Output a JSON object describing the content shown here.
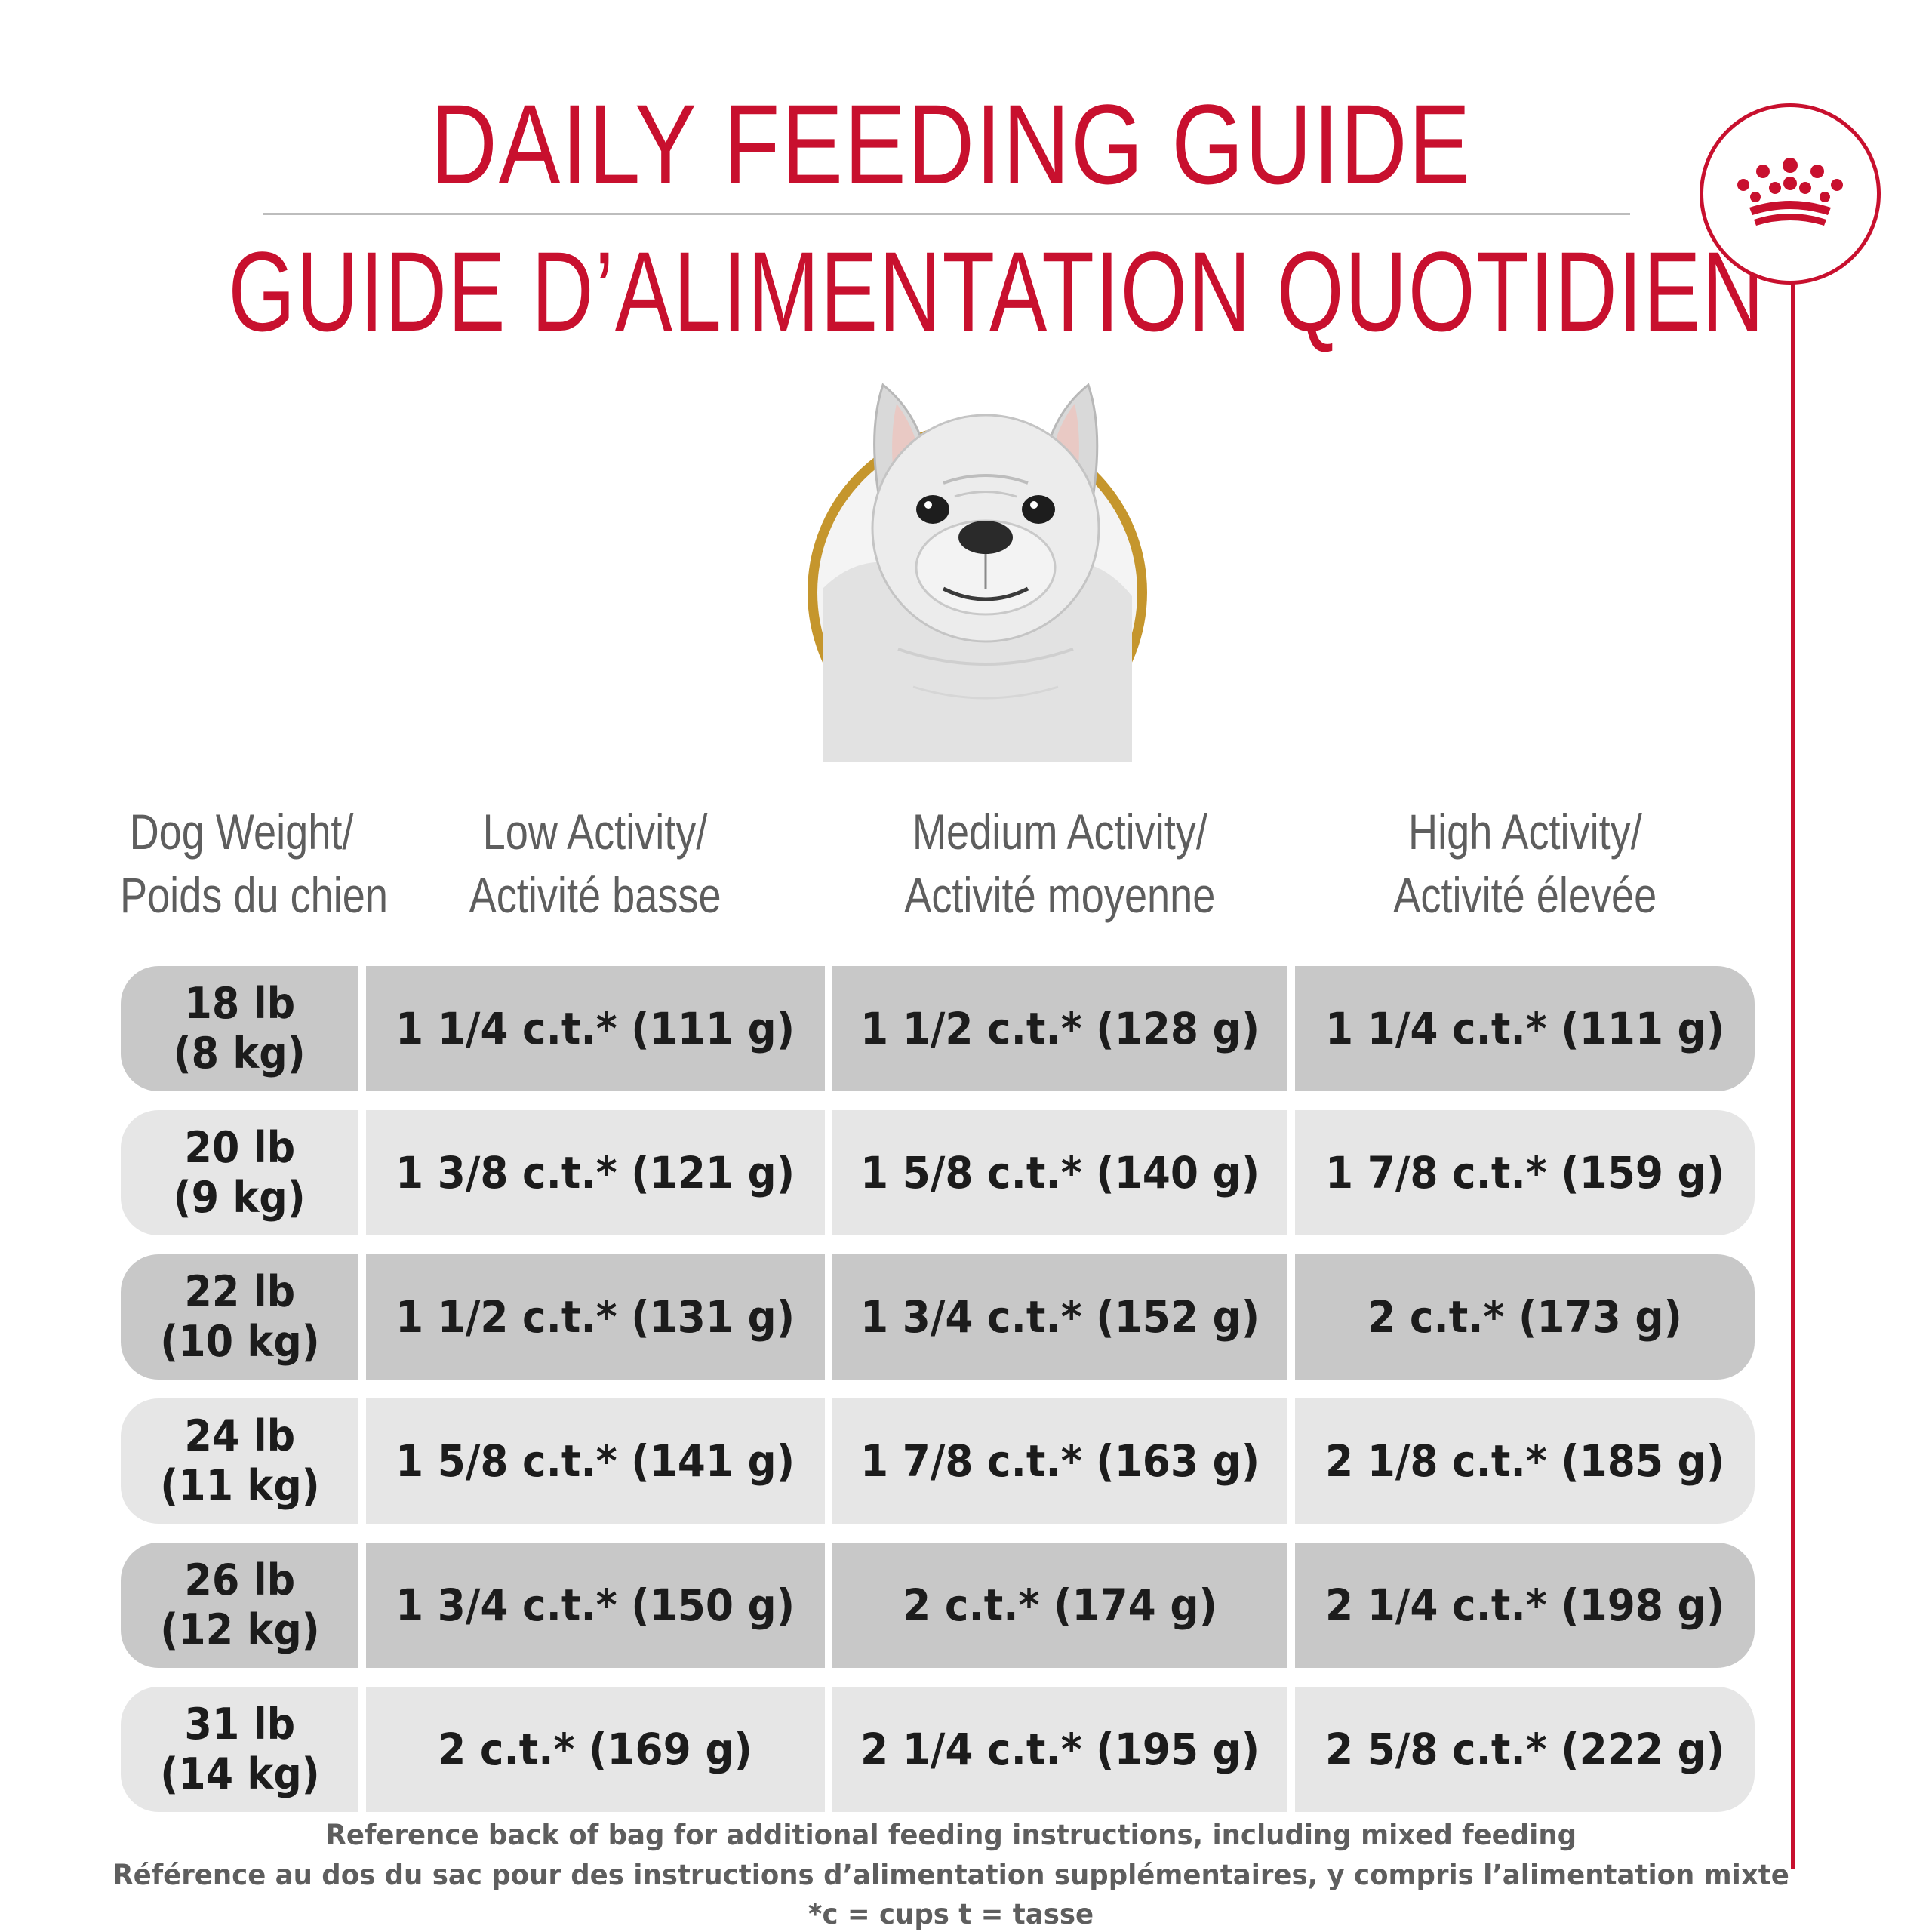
{
  "titles": {
    "english": "DAILY FEEDING GUIDE",
    "french": "GUIDE D’ALIMENTATION QUOTIDIEN"
  },
  "brand": {
    "icon": "crown-icon",
    "color": "#c8102e"
  },
  "image": {
    "subject": "dog-portrait-icon",
    "ring_color": "#c5962d"
  },
  "table": {
    "headers": [
      {
        "line1": "Dog Weight/",
        "line2": "Poids du chien"
      },
      {
        "line1": "Low Activity/",
        "line2": "Activité basse"
      },
      {
        "line1": "Medium Activity/",
        "line2": "Activité moyenne"
      },
      {
        "line1": "High Activity/",
        "line2": "Activité élevée"
      }
    ],
    "rows": [
      {
        "weight_lb": "18 lb",
        "weight_kg": "(8 kg)",
        "low": "1 1/4 c.t.* (111 g)",
        "medium": "1 1/2 c.t.* (128 g)",
        "high": "1 1/4 c.t.* (111 g)"
      },
      {
        "weight_lb": "20 lb",
        "weight_kg": "(9 kg)",
        "low": "1 3/8 c.t.* (121 g)",
        "medium": "1 5/8 c.t.* (140 g)",
        "high": "1 7/8 c.t.* (159 g)"
      },
      {
        "weight_lb": "22 lb",
        "weight_kg": "(10 kg)",
        "low": "1 1/2 c.t.* (131 g)",
        "medium": "1 3/4 c.t.* (152 g)",
        "high": "2 c.t.* (173 g)"
      },
      {
        "weight_lb": "24 lb",
        "weight_kg": "(11 kg)",
        "low": "1 5/8 c.t.* (141 g)",
        "medium": "1 7/8 c.t.* (163 g)",
        "high": "2 1/8 c.t.* (185 g)"
      },
      {
        "weight_lb": "26 lb",
        "weight_kg": "(12 kg)",
        "low": "1 3/4 c.t.* (150 g)",
        "medium": "2 c.t.* (174 g)",
        "high": "2 1/4 c.t.* (198 g)"
      },
      {
        "weight_lb": "31 lb",
        "weight_kg": "(14 kg)",
        "low": "2 c.t.* (169 g)",
        "medium": "2 1/4 c.t.* (195 g)",
        "high": "2 5/8 c.t.* (222 g)"
      }
    ],
    "row_colors": {
      "dark": "#c8c8c8",
      "light": "#e6e6e6"
    }
  },
  "footer": {
    "line1": "Reference back of bag for additional feeding instructions, including mixed feeding",
    "line2": "Référence au dos du sac pour des instructions d’alimentation supplémentaires, y compris l’alimentation mixte",
    "line3": "*c = cups t = tasse"
  }
}
